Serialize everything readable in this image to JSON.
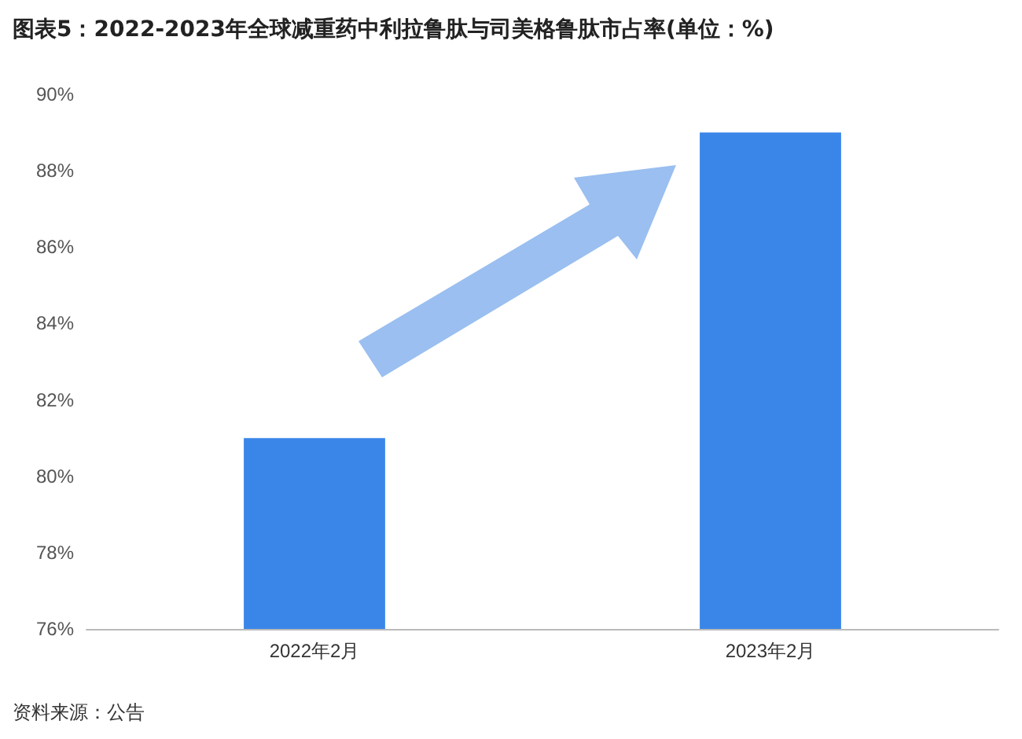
{
  "chart_data": {
    "type": "bar",
    "title": "图表5：2022-2023年全球减重药中利拉鲁肽与司美格鲁肽市占率(单位：%)",
    "categories": [
      "2022年2月",
      "2023年2月"
    ],
    "values": [
      81,
      89
    ],
    "color": "#3a86e8",
    "ylim": [
      76,
      90
    ],
    "yticks": [
      {
        "value": 76,
        "label": "76%"
      },
      {
        "value": 78,
        "label": "78%"
      },
      {
        "value": 80,
        "label": "80%"
      },
      {
        "value": 82,
        "label": "82%"
      },
      {
        "value": 84,
        "label": "84%"
      },
      {
        "value": 86,
        "label": "86%"
      },
      {
        "value": 88,
        "label": "88%"
      },
      {
        "value": 90,
        "label": "90%"
      }
    ],
    "grid": false,
    "annotations": [
      "资料来源：公告"
    ]
  }
}
